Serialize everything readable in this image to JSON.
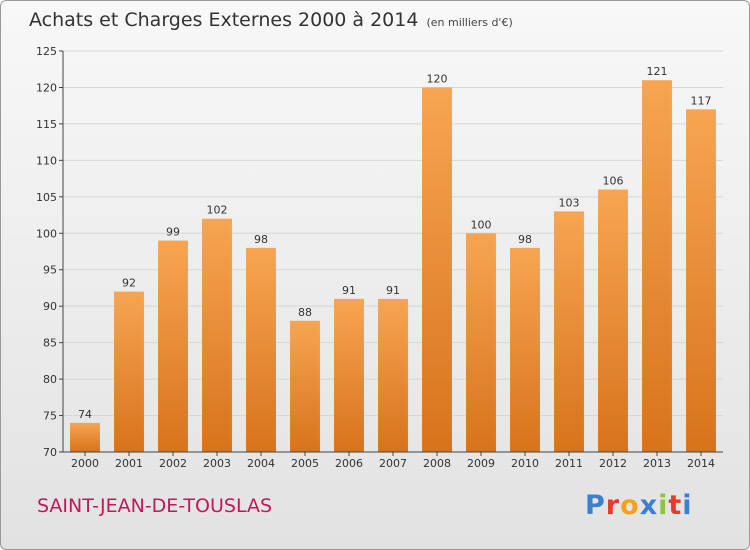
{
  "header": {
    "title": "Achats et Charges Externes 2000 à 2014",
    "subtitle": "(en milliers d'€)"
  },
  "footer": {
    "commune": "SAINT-JEAN-DE-TOUSLAS",
    "logo": "Proxiti",
    "logo_letters": [
      {
        "ch": "P",
        "color": "#3a7fd4"
      },
      {
        "ch": "r",
        "color": "#e8392b"
      },
      {
        "ch": "o",
        "color": "#f4a21a"
      },
      {
        "ch": "x",
        "color": "#3a7fd4"
      },
      {
        "ch": "i",
        "color": "#8cc63f"
      },
      {
        "ch": "t",
        "color": "#e8392b"
      },
      {
        "ch": "i",
        "color": "#3a7fd4"
      }
    ]
  },
  "chart_data": {
    "type": "bar",
    "categories": [
      "2000",
      "2001",
      "2002",
      "2003",
      "2004",
      "2005",
      "2006",
      "2007",
      "2008",
      "2009",
      "2010",
      "2011",
      "2012",
      "2013",
      "2014"
    ],
    "values": [
      74,
      92,
      99,
      102,
      98,
      88,
      91,
      91,
      120,
      100,
      98,
      103,
      106,
      121,
      117
    ],
    "title": "Achats et Charges Externes 2000 à 2014",
    "ylim": [
      70,
      125
    ],
    "yticks": [
      70,
      75,
      80,
      85,
      90,
      95,
      100,
      105,
      110,
      115,
      120,
      125
    ],
    "grid": true,
    "bar_color": "#f0943e"
  }
}
